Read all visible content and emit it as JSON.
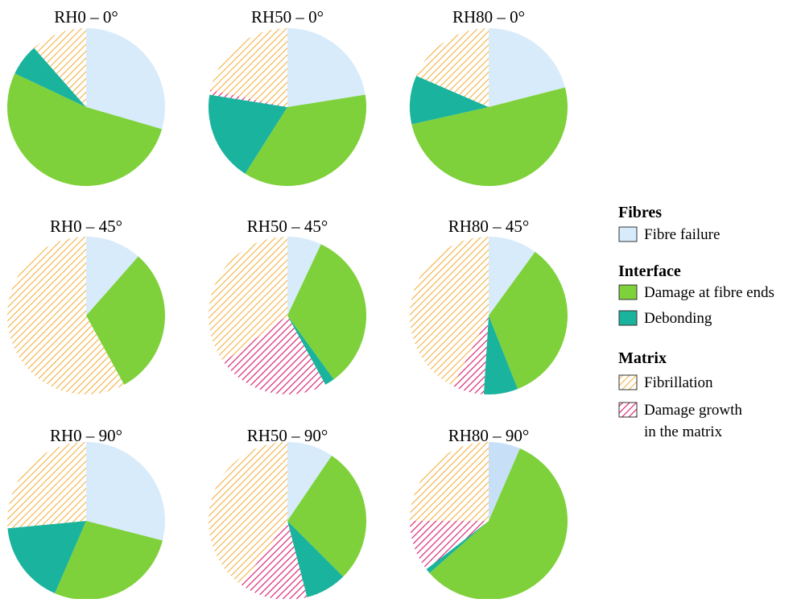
{
  "colors": {
    "fibre_failure": "#d7ebfb",
    "fibre_failure_alt": "#c7e0f8",
    "damage_fibre_ends": "#7ed13a",
    "debonding": "#1ab39e",
    "fibrillation_stripe": "#f5b040",
    "matrix_growth_stripe": "#d9176a"
  },
  "chart_data": {
    "type": "pie",
    "category_order": [
      "Fibre failure",
      "Damage at fibre ends",
      "Debonding",
      "Damage growth in the matrix",
      "Fibrillation"
    ],
    "pies": [
      {
        "title": "RH0 – 0°",
        "slices": [
          {
            "category": "Fibre failure",
            "value": 29.5
          },
          {
            "category": "Damage at fibre ends",
            "value": 52.5
          },
          {
            "category": "Debonding",
            "value": 6.5
          },
          {
            "category": "Fibrillation",
            "value": 11.5
          }
        ]
      },
      {
        "title": "RH50 – 0°",
        "slices": [
          {
            "category": "Fibre failure",
            "value": 22.5
          },
          {
            "category": "Damage at fibre ends",
            "value": 36.5
          },
          {
            "category": "Debonding",
            "value": 18.5
          },
          {
            "category": "Fibrillation",
            "value": 21.5
          },
          {
            "category": "Damage growth in the matrix",
            "value": 1.0
          }
        ]
      },
      {
        "title": "RH80 – 0°",
        "slices": [
          {
            "category": "Fibre failure",
            "value": 21.0
          },
          {
            "category": "Damage at fibre ends",
            "value": 50.5
          },
          {
            "category": "Debonding",
            "value": 10.0
          },
          {
            "category": "Fibrillation",
            "value": 18.5
          }
        ]
      },
      {
        "title": "RH0 – 45°",
        "slices": [
          {
            "category": "Fibre failure",
            "value": 11.5
          },
          {
            "category": "Damage at fibre ends",
            "value": 30.5
          },
          {
            "category": "Fibrillation",
            "value": 58.0
          }
        ]
      },
      {
        "title": "RH50 – 45°",
        "slices": [
          {
            "category": "Fibre failure",
            "value": 7.0
          },
          {
            "category": "Damage at fibre ends",
            "value": 33.0
          },
          {
            "category": "Debonding",
            "value": 2.0
          },
          {
            "category": "Fibrillation",
            "value": 35.0
          },
          {
            "category": "Damage growth in the matrix",
            "value": 23.0
          }
        ]
      },
      {
        "title": "RH80 – 45°",
        "slices": [
          {
            "category": "Fibre failure",
            "value": 10.0
          },
          {
            "category": "Damage at fibre ends",
            "value": 34.0
          },
          {
            "category": "Debonding",
            "value": 7.0
          },
          {
            "category": "Fibrillation",
            "value": 42.5
          },
          {
            "category": "Damage growth in the matrix",
            "value": 6.5
          }
        ]
      },
      {
        "title": "RH0 – 90°",
        "slices": [
          {
            "category": "Fibre failure",
            "value": 29.0
          },
          {
            "category": "Damage at fibre ends",
            "value": 27.5
          },
          {
            "category": "Debonding",
            "value": 17.0
          },
          {
            "category": "Fibrillation",
            "value": 26.5
          }
        ]
      },
      {
        "title": "RH50 – 90°",
        "slices": [
          {
            "category": "Fibre failure",
            "value": 9.5
          },
          {
            "category": "Damage at fibre ends",
            "value": 28.0
          },
          {
            "category": "Debonding",
            "value": 8.5
          },
          {
            "category": "Fibrillation",
            "value": 40.0
          },
          {
            "category": "Damage growth in the matrix",
            "value": 14.0
          }
        ]
      },
      {
        "title": "RH80 – 90°",
        "slices": [
          {
            "category": "Fibre failure",
            "value": 6.5
          },
          {
            "category": "Damage at fibre ends",
            "value": 57.0
          },
          {
            "category": "Debonding",
            "value": 1.0
          },
          {
            "category": "Fibrillation",
            "value": 25.0
          },
          {
            "category": "Damage growth in the matrix",
            "value": 10.5
          }
        ]
      }
    ],
    "legend": {
      "placement": "right",
      "groups": [
        {
          "title": "Fibres",
          "items": [
            {
              "label": "Fibre failure",
              "category": "Fibre failure"
            }
          ]
        },
        {
          "title": "Interface",
          "items": [
            {
              "label": "Damage at fibre ends",
              "category": "Damage at fibre ends"
            },
            {
              "label": "Debonding",
              "category": "Debonding"
            }
          ]
        },
        {
          "title": "Matrix",
          "items": [
            {
              "label": "Fibrillation",
              "category": "Fibrillation"
            },
            {
              "label": "Damage growth",
              "label2": "in the matrix",
              "category": "Damage growth in the matrix"
            }
          ]
        }
      ]
    }
  }
}
